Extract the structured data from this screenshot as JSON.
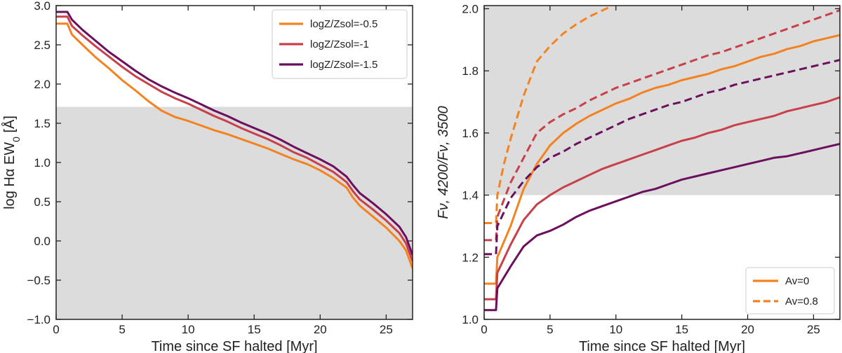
{
  "chart_data": [
    {
      "type": "line",
      "title": "",
      "xlabel": "Time since SF halted [Myr]",
      "ylabel": "log Hα EW",
      "ylabel_sub": "0",
      "ylabel_unit": " [Å]",
      "xlim": [
        0,
        27
      ],
      "ylim": [
        -1.0,
        3.0
      ],
      "xticks": [
        0,
        5,
        10,
        15,
        20,
        25
      ],
      "yticks": [
        -1.0,
        -0.5,
        0.0,
        0.5,
        1.0,
        1.5,
        2.0,
        2.5,
        3.0
      ],
      "ytick_labels": [
        "−1.0",
        "−0.5",
        "0.0",
        "0.5",
        "1.0",
        "1.5",
        "2.0",
        "2.5",
        "3.0"
      ],
      "shaded_region": {
        "y_from": -1.0,
        "y_to": 1.71,
        "color": "#dcdcdc"
      },
      "legend_position": "top-right",
      "series": [
        {
          "name": "logZ/Zsol=-0.5",
          "color": "#f58220",
          "style": "solid",
          "x": [
            0,
            0.85,
            1.2,
            2,
            3,
            4,
            5,
            6,
            7,
            8,
            9,
            10,
            11,
            12,
            13,
            14,
            15,
            16,
            17,
            18,
            19,
            20,
            21,
            22,
            22.5,
            23,
            24,
            25,
            26,
            26.5,
            27
          ],
          "y": [
            2.77,
            2.77,
            2.63,
            2.5,
            2.34,
            2.2,
            2.05,
            1.92,
            1.78,
            1.66,
            1.58,
            1.53,
            1.47,
            1.41,
            1.36,
            1.3,
            1.24,
            1.18,
            1.11,
            1.04,
            0.98,
            0.9,
            0.8,
            0.68,
            0.55,
            0.45,
            0.31,
            0.17,
            0.0,
            -0.12,
            -0.35
          ]
        },
        {
          "name": "logZ/Zsol=-1",
          "color": "#c8404a",
          "style": "solid",
          "x": [
            0,
            0.85,
            1.2,
            2,
            3,
            4,
            5,
            6,
            7,
            8,
            9,
            10,
            11,
            12,
            13,
            14,
            15,
            16,
            17,
            18,
            19,
            20,
            21,
            22,
            22.5,
            23,
            24,
            25,
            26,
            26.5,
            27
          ],
          "y": [
            2.86,
            2.86,
            2.74,
            2.62,
            2.48,
            2.35,
            2.22,
            2.1,
            2.0,
            1.9,
            1.82,
            1.75,
            1.67,
            1.59,
            1.52,
            1.44,
            1.37,
            1.3,
            1.22,
            1.13,
            1.06,
            0.97,
            0.88,
            0.75,
            0.63,
            0.53,
            0.4,
            0.26,
            0.1,
            -0.03,
            -0.26
          ]
        },
        {
          "name": "logZ/Zsol=-1.5",
          "color": "#6b0f5e",
          "style": "solid",
          "x": [
            0,
            0.85,
            1.2,
            2,
            3,
            4,
            5,
            6,
            7,
            8,
            9,
            10,
            11,
            12,
            13,
            14,
            15,
            16,
            17,
            18,
            19,
            20,
            21,
            22,
            22.5,
            23,
            24,
            25,
            26,
            26.5,
            27
          ],
          "y": [
            2.92,
            2.92,
            2.82,
            2.69,
            2.55,
            2.41,
            2.29,
            2.17,
            2.06,
            1.97,
            1.89,
            1.82,
            1.74,
            1.66,
            1.59,
            1.51,
            1.44,
            1.37,
            1.29,
            1.2,
            1.12,
            1.04,
            0.95,
            0.82,
            0.71,
            0.61,
            0.48,
            0.34,
            0.18,
            0.05,
            -0.18
          ]
        }
      ]
    },
    {
      "type": "line",
      "title": "",
      "xlabel": "Time since SF halted [Myr]",
      "ylabel": "Fν, 4200/Fν, 3500",
      "xlim": [
        0,
        27
      ],
      "ylim": [
        1.0,
        2.01
      ],
      "xticks": [
        0,
        5,
        10,
        15,
        20,
        25
      ],
      "yticks": [
        1.0,
        1.2,
        1.4,
        1.6,
        1.8,
        2.0
      ],
      "ytick_labels": [
        "1.0",
        "1.2",
        "1.4",
        "1.6",
        "1.8",
        "2.0"
      ],
      "shaded_region": {
        "y_from": 1.4,
        "y_to": 2.01,
        "color": "#dcdcdc"
      },
      "legend_position": "bottom-right",
      "legend": [
        {
          "label": "Av=0",
          "color": "#f58220",
          "style": "solid"
        },
        {
          "label": "Av=0.8",
          "color": "#f58220",
          "style": "dashed"
        }
      ],
      "series": [
        {
          "name": "logZ/Zsol=-0.5, Av=0",
          "color": "#f58220",
          "style": "solid",
          "x": [
            0,
            0.9,
            1.0,
            2,
            3,
            4,
            5,
            6,
            7,
            8,
            9,
            10,
            11,
            12,
            13,
            14,
            15,
            16,
            17,
            18,
            19,
            20,
            21,
            22,
            23,
            24,
            25,
            26,
            27
          ],
          "y": [
            1.115,
            1.115,
            1.2,
            1.3,
            1.42,
            1.5,
            1.56,
            1.6,
            1.63,
            1.655,
            1.675,
            1.695,
            1.71,
            1.73,
            1.745,
            1.755,
            1.77,
            1.78,
            1.79,
            1.805,
            1.815,
            1.83,
            1.845,
            1.855,
            1.87,
            1.88,
            1.895,
            1.905,
            1.915
          ]
        },
        {
          "name": "logZ/Zsol=-1, Av=0",
          "color": "#c8404a",
          "style": "solid",
          "x": [
            0,
            0.9,
            1.0,
            2,
            3,
            4,
            5,
            6,
            7,
            8,
            9,
            10,
            11,
            12,
            13,
            14,
            15,
            16,
            17,
            18,
            19,
            20,
            21,
            22,
            23,
            24,
            25,
            26,
            27
          ],
          "y": [
            1.065,
            1.065,
            1.15,
            1.24,
            1.32,
            1.37,
            1.4,
            1.425,
            1.445,
            1.465,
            1.485,
            1.5,
            1.515,
            1.53,
            1.545,
            1.56,
            1.575,
            1.585,
            1.6,
            1.61,
            1.625,
            1.635,
            1.645,
            1.655,
            1.67,
            1.68,
            1.69,
            1.7,
            1.715
          ]
        },
        {
          "name": "logZ/Zsol=-1.5, Av=0",
          "color": "#6b0f5e",
          "style": "solid",
          "x": [
            0,
            0.9,
            1.0,
            2,
            3,
            4,
            5,
            6,
            7,
            8,
            9,
            10,
            11,
            12,
            13,
            14,
            15,
            16,
            17,
            18,
            19,
            20,
            21,
            22,
            23,
            24,
            25,
            26,
            27
          ],
          "y": [
            1.03,
            1.03,
            1.1,
            1.17,
            1.235,
            1.27,
            1.285,
            1.305,
            1.33,
            1.35,
            1.365,
            1.38,
            1.395,
            1.41,
            1.42,
            1.435,
            1.45,
            1.46,
            1.47,
            1.48,
            1.49,
            1.5,
            1.51,
            1.52,
            1.525,
            1.535,
            1.545,
            1.555,
            1.565
          ]
        },
        {
          "name": "logZ/Zsol=-0.5, Av=0.8",
          "color": "#f58220",
          "style": "dashed",
          "x": [
            0,
            0.9,
            1.0,
            1.5,
            2,
            3,
            4,
            5,
            6,
            7,
            8,
            9,
            9.5
          ],
          "y": [
            1.31,
            1.31,
            1.4,
            1.5,
            1.58,
            1.72,
            1.83,
            1.88,
            1.92,
            1.95,
            1.975,
            1.995,
            2.005
          ]
        },
        {
          "name": "logZ/Zsol=-1, Av=0.8",
          "color": "#c8404a",
          "style": "dashed",
          "x": [
            0,
            0.9,
            1.0,
            2,
            3,
            4,
            5,
            6,
            7,
            8,
            9,
            10,
            11,
            12,
            13,
            14,
            15,
            16,
            17,
            18,
            19,
            20,
            21,
            22,
            23,
            24,
            25,
            26,
            27
          ],
          "y": [
            1.255,
            1.255,
            1.33,
            1.44,
            1.52,
            1.6,
            1.635,
            1.66,
            1.68,
            1.705,
            1.725,
            1.745,
            1.76,
            1.775,
            1.79,
            1.805,
            1.82,
            1.835,
            1.85,
            1.86,
            1.875,
            1.89,
            1.905,
            1.92,
            1.935,
            1.95,
            1.965,
            1.98,
            1.995
          ]
        },
        {
          "name": "logZ/Zsol=-1.5, Av=0.8",
          "color": "#6b0f5e",
          "style": "dashed",
          "x": [
            0,
            0.9,
            1.0,
            2,
            3,
            4,
            5,
            6,
            7,
            8,
            9,
            10,
            11,
            12,
            13,
            14,
            15,
            16,
            17,
            18,
            19,
            20,
            21,
            22,
            23,
            24,
            25,
            26,
            27
          ],
          "y": [
            1.21,
            1.21,
            1.3,
            1.39,
            1.445,
            1.49,
            1.52,
            1.54,
            1.565,
            1.585,
            1.605,
            1.625,
            1.645,
            1.66,
            1.675,
            1.69,
            1.7,
            1.715,
            1.73,
            1.74,
            1.755,
            1.765,
            1.775,
            1.785,
            1.795,
            1.805,
            1.815,
            1.825,
            1.835
          ]
        }
      ]
    }
  ]
}
